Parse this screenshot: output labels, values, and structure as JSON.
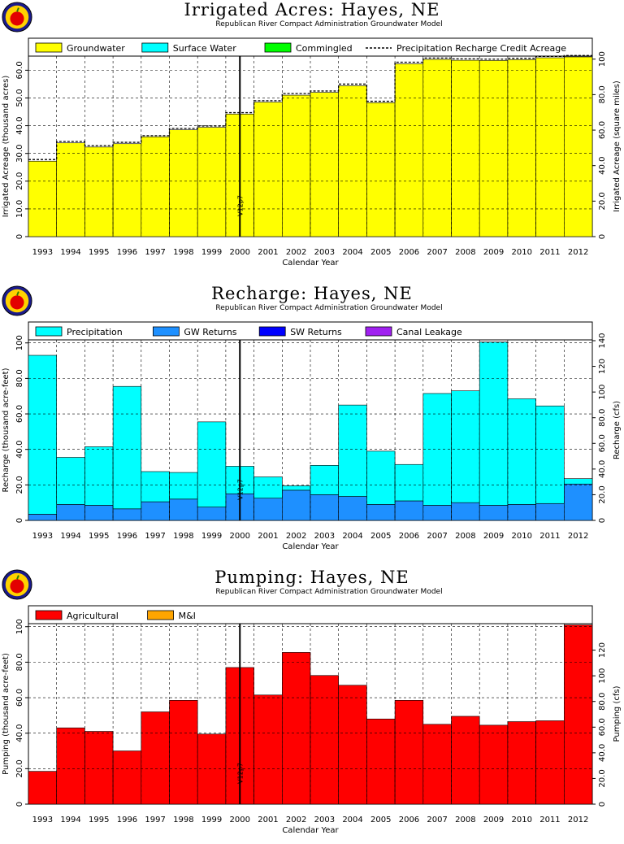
{
  "chart_data": [
    {
      "type": "bar",
      "title": "Irrigated  Acres:  Hayes,  NE",
      "subtitle": "Republican River Compact Administration Groundwater Model",
      "xlabel": "Calendar  Year",
      "ylabel": "Irrigated  Acreage  (thousand  acres)",
      "y2label": "Irrigated  Acreage  (square  miles)",
      "categories": [
        "1993",
        "1994",
        "1995",
        "1996",
        "1997",
        "1998",
        "1999",
        "2000",
        "2001",
        "2002",
        "2003",
        "2004",
        "2005",
        "2006",
        "2007",
        "2008",
        "2009",
        "2010",
        "2011",
        "2012"
      ],
      "ylim": [
        0,
        64.8
      ],
      "yticks": [
        0,
        10.0,
        20.0,
        30.0,
        40.0,
        50.0,
        60.0
      ],
      "yticklabels": [
        "0",
        "10.0",
        "20.0",
        "30.0",
        "40.0",
        "50.0",
        "60.0"
      ],
      "y2lim": [
        0,
        101.25
      ],
      "y2ticks": [
        0,
        20.0,
        40.0,
        60.0,
        80.0,
        100
      ],
      "y2ticklabels": [
        "0",
        "20.0",
        "40.0",
        "60.0",
        "80.0",
        "100"
      ],
      "stacked": true,
      "series": [
        {
          "name": "Groundwater",
          "color": "#ffff00",
          "values": [
            27.2,
            33.8,
            32.3,
            33.5,
            36.0,
            38.5,
            39.4,
            44.2,
            48.5,
            51.0,
            52.0,
            54.4,
            48.3,
            62.3,
            63.9,
            63.6,
            63.5,
            63.8,
            64.5,
            64.8
          ]
        },
        {
          "name": "Surface  Water",
          "color": "#00ffff",
          "values": [
            0,
            0,
            0,
            0,
            0,
            0,
            0,
            0,
            0,
            0,
            0,
            0,
            0,
            0,
            0,
            0,
            0,
            0,
            0,
            0
          ]
        },
        {
          "name": "Commingled",
          "color": "#00ff00",
          "values": [
            0,
            0,
            0,
            0,
            0,
            0,
            0,
            0,
            0,
            0,
            0,
            0,
            0,
            0,
            0,
            0,
            0,
            0,
            0,
            0
          ]
        }
      ],
      "overlay": {
        "name": "Precipitation  Recharge  Credit  Acreage",
        "style": "dashed",
        "values": [
          27.8,
          34.3,
          32.8,
          34.0,
          36.4,
          39.0,
          39.9,
          44.7,
          49.0,
          51.6,
          52.5,
          55.0,
          48.8,
          62.9,
          64.4,
          64.1,
          64.0,
          64.3,
          65.0,
          65.3
        ]
      },
      "marker": {
        "label": "V12p7",
        "position": 7.5
      },
      "grid": true,
      "legend": "top"
    },
    {
      "type": "bar",
      "title": "Recharge:  Hayes,  NE",
      "subtitle": "Republican River Compact Administration Groundwater Model",
      "xlabel": "Calendar  Year",
      "ylabel": "Recharge  (thousand  acre-feet)",
      "y2label": "Recharge  (cfs)",
      "categories": [
        "1993",
        "1994",
        "1995",
        "1996",
        "1997",
        "1998",
        "1999",
        "2000",
        "2001",
        "2002",
        "2003",
        "2004",
        "2005",
        "2006",
        "2007",
        "2008",
        "2009",
        "2010",
        "2011",
        "2012"
      ],
      "ylim": [
        0,
        101.25
      ],
      "yticks": [
        0,
        20.0,
        40.0,
        60.0,
        80.0,
        100
      ],
      "yticklabels": [
        "0",
        "20.0",
        "40.0",
        "60.0",
        "80.0",
        "100"
      ],
      "y2lim": [
        0,
        140
      ],
      "y2ticks": [
        0,
        20.0,
        40.0,
        60.0,
        80.0,
        100,
        120,
        140
      ],
      "y2ticklabels": [
        "0",
        "20.0",
        "40.0",
        "60.0",
        "80.0",
        "100",
        "120",
        "140"
      ],
      "stacked": true,
      "series": [
        {
          "name": "GW  Returns",
          "color": "#1e90ff",
          "values": [
            3.5,
            9.0,
            8.5,
            6.5,
            10.5,
            12.0,
            7.5,
            15.0,
            12.5,
            17.0,
            14.5,
            13.5,
            9.0,
            11.0,
            8.5,
            10.0,
            8.5,
            9.0,
            9.5,
            20.5
          ]
        },
        {
          "name": "Precipitation",
          "color": "#00ffff",
          "values": [
            89.5,
            26.5,
            33.0,
            69.0,
            17.0,
            15.0,
            48.0,
            15.5,
            12.0,
            2.5,
            16.5,
            51.5,
            30.0,
            20.5,
            63.0,
            63.0,
            92.0,
            59.5,
            55.0,
            3.0
          ]
        },
        {
          "name": "SW  Returns",
          "color": "#0000ff",
          "values": [
            0,
            0,
            0,
            0,
            0,
            0,
            0,
            0,
            0,
            0,
            0,
            0,
            0,
            0,
            0,
            0,
            0,
            0,
            0,
            0
          ]
        },
        {
          "name": "Canal  Leakage",
          "color": "#a020f0",
          "values": [
            0,
            0,
            0,
            0,
            0,
            0,
            0,
            0,
            0,
            0,
            0,
            0,
            0,
            0,
            0,
            0,
            0,
            0,
            0,
            0
          ]
        }
      ],
      "legend_order": [
        "Precipitation",
        "GW  Returns",
        "SW  Returns",
        "Canal  Leakage"
      ],
      "marker": {
        "label": "V12p7",
        "position": 7.5
      },
      "grid": true,
      "legend": "top"
    },
    {
      "type": "bar",
      "title": "Pumping:  Hayes,  NE",
      "subtitle": "Republican River Compact Administration Groundwater Model",
      "xlabel": "Calendar  Year",
      "ylabel": "Pumping  (thousand  acre-feet)",
      "y2label": "Pumping  (cfs)",
      "categories": [
        "1993",
        "1994",
        "1995",
        "1996",
        "1997",
        "1998",
        "1999",
        "2000",
        "2001",
        "2002",
        "2003",
        "2004",
        "2005",
        "2006",
        "2007",
        "2008",
        "2009",
        "2010",
        "2011",
        "2012"
      ],
      "ylim": [
        0,
        101.25
      ],
      "yticks": [
        0,
        20.0,
        40.0,
        60.0,
        80.0,
        100
      ],
      "yticklabels": [
        "0",
        "20.0",
        "40.0",
        "60.0",
        "80.0",
        "100"
      ],
      "y2lim": [
        0,
        140
      ],
      "y2ticks": [
        0,
        20.0,
        40.0,
        60.0,
        80.0,
        100,
        120
      ],
      "y2ticklabels": [
        "0",
        "20.0",
        "40.0",
        "60.0",
        "80.0",
        "100",
        "120"
      ],
      "stacked": true,
      "series": [
        {
          "name": "Agricultural",
          "color": "#ff0000",
          "values": [
            18.5,
            43.0,
            41.0,
            30.0,
            52.0,
            58.5,
            39.5,
            77.0,
            61.5,
            85.5,
            72.5,
            67.0,
            48.0,
            58.5,
            45.0,
            49.5,
            44.5,
            46.5,
            47.0,
            101.0
          ]
        },
        {
          "name": "M&I",
          "color": "#ffa500",
          "values": [
            0,
            0,
            0,
            0,
            0,
            0,
            0,
            0,
            0,
            0,
            0,
            0,
            0,
            0,
            0,
            0,
            0,
            0,
            0,
            0
          ]
        }
      ],
      "marker": {
        "label": "V12p7",
        "position": 7.5
      },
      "grid": true,
      "legend": "top"
    }
  ]
}
